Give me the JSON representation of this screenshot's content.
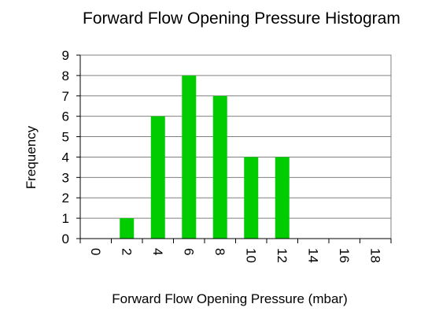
{
  "chart_data": {
    "type": "bar",
    "title": "Forward Flow Opening Pressure Histogram",
    "xlabel": "Forward Flow Opening Pressure (mbar)",
    "ylabel": "Frequency",
    "categories": [
      "0",
      "2",
      "4",
      "6",
      "8",
      "10",
      "12",
      "14",
      "16",
      "18"
    ],
    "values": [
      0,
      1,
      6,
      8,
      7,
      4,
      4,
      0,
      0,
      0
    ],
    "ylim": [
      0,
      9
    ],
    "yticks": [
      "0",
      "1",
      "2",
      "3",
      "4",
      "5",
      "6",
      "7",
      "8",
      "9"
    ],
    "grid": true,
    "bar_color": "#00cc00",
    "grid_color": "#808080"
  }
}
